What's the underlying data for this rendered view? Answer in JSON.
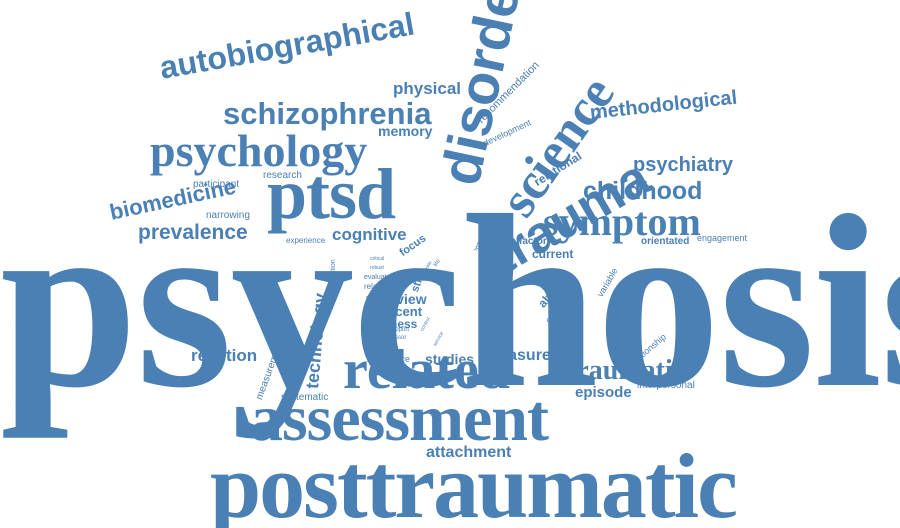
{
  "color": "#4a80b4",
  "background": "#ffffff",
  "words": {
    "psychosis": "psychosis",
    "posttraumatic": "posttraumatic",
    "assessment": "assessment",
    "related": "related",
    "ptsd": "ptsd",
    "psychology": "psychology",
    "schizophrenia": "schizophrenia",
    "autobiographical": "autobiographical",
    "disorder": "disorder",
    "science": "science",
    "trauma": "trauma",
    "symptom": "symptom",
    "methodological": "methodological",
    "psychiatry": "psychiatry",
    "childhood": "childhood",
    "biomedicine": "biomedicine",
    "prevalence": "prevalence",
    "cognitive": "cognitive",
    "technology": "technology",
    "traumatic": "traumatic",
    "episode": "episode",
    "measure": "measure",
    "studies": "studies",
    "reaction": "reaction",
    "physical": "physical",
    "memory": "memory",
    "recommendation": "recommendation",
    "development": "development",
    "relational": "relational",
    "participant": "participant",
    "research": "research",
    "narrowing": "narrowing",
    "experience": "experience",
    "focus": "focus",
    "review": "review",
    "recent": "recent",
    "illness": "illness",
    "clinical": "clinical",
    "social": "social",
    "abuse": "abuse",
    "current": "current",
    "factor": "factor",
    "criterion": "criterion",
    "variable": "variable",
    "orientated": "orientated",
    "engagement": "engagement",
    "relationship": "relationship",
    "interpersonal": "interpersonal",
    "attachment": "attachment",
    "systematic": "systematic",
    "measurement": "measurement",
    "recurrence": "recurrence",
    "limitation": "limitation",
    "str": "str",
    "relation": "relation",
    "evaluate": "evaluate",
    "support": "support",
    "stressor": "stressor",
    "context": "context",
    "critical": "critical",
    "robust": "robust",
    "anxious": "anxious",
    "empirical": "empirical",
    "life": "life",
    "rate": "rate",
    "model": "model",
    "control": "control",
    "type": "type",
    "service": "service"
  }
}
